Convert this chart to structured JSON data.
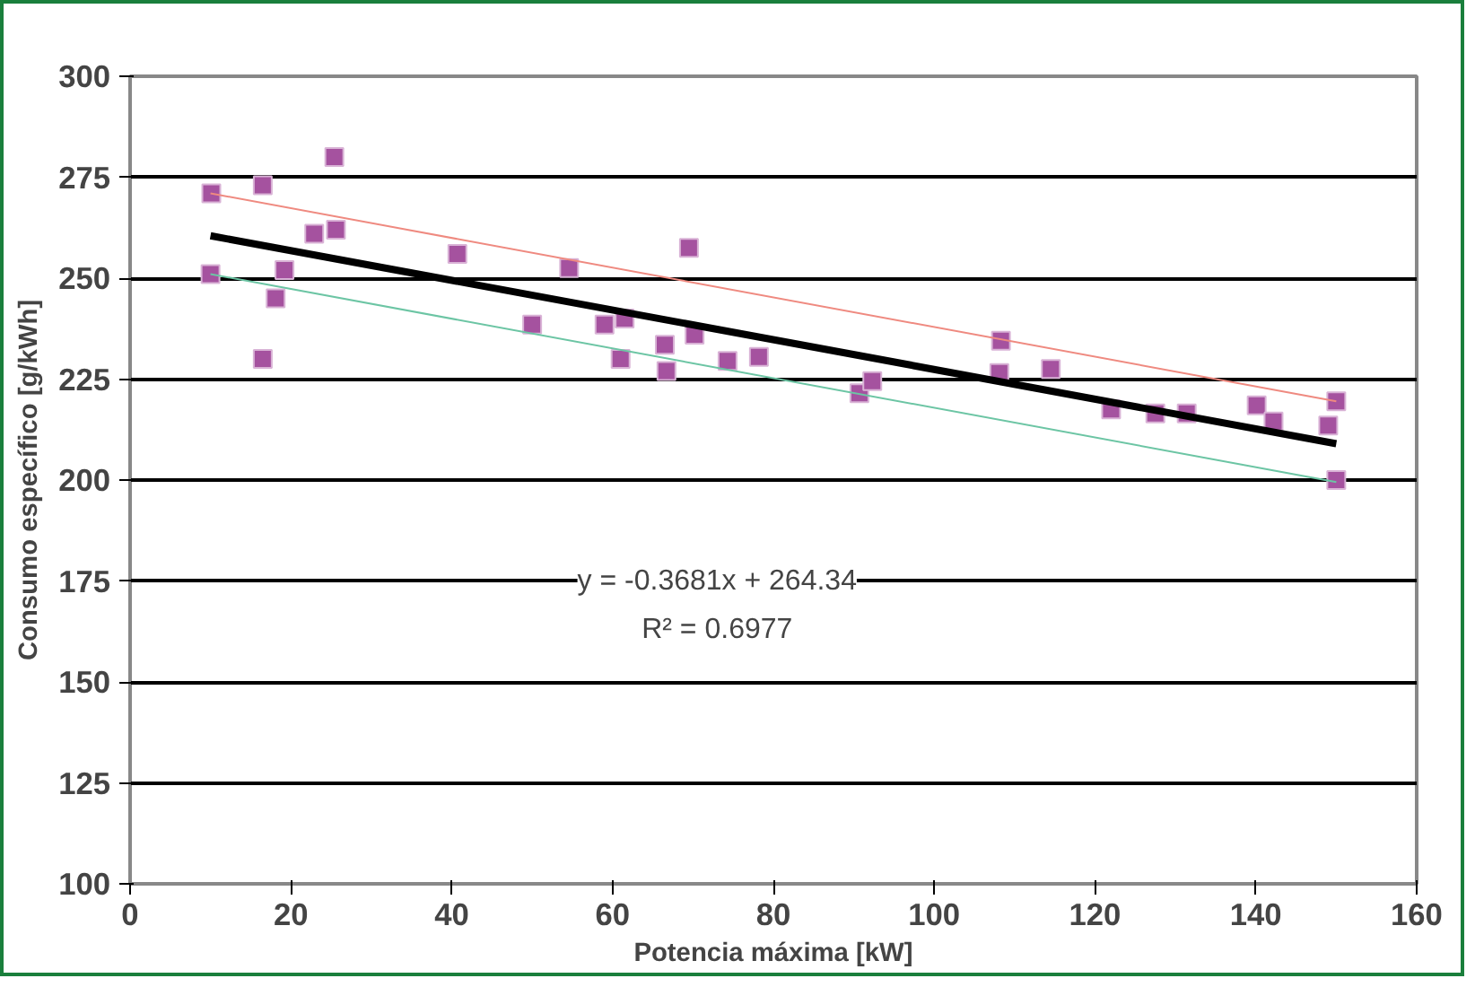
{
  "chart_data": {
    "type": "scatter",
    "xlabel": "Potencia máxima [kW]",
    "ylabel": "Consumo específico [g/kWh]",
    "xlim": [
      0,
      160
    ],
    "ylim": [
      100,
      300
    ],
    "xticks": [
      0,
      20,
      40,
      60,
      80,
      100,
      120,
      140,
      160
    ],
    "yticks": [
      100,
      125,
      150,
      175,
      200,
      225,
      250,
      275,
      300
    ],
    "grid": "y",
    "annotations": [
      "y = -0.3681x + 264.34",
      "R² = 0.6977"
    ],
    "series": [
      {
        "color": "#a5529f",
        "marker": "square",
        "x": [
          10.1,
          10,
          16.5,
          16.5,
          18.1,
          19.2,
          22.9,
          25.4,
          25.6,
          40.7,
          50,
          54.6,
          59,
          61,
          61.5,
          66.5,
          66.7,
          69.5,
          70.2,
          74.3,
          78.2,
          90.7,
          92.3,
          108.1,
          108.3,
          114.5,
          122,
          127.5,
          131.4,
          140.1,
          142.2,
          149,
          150,
          150
        ],
        "values": [
          271,
          251,
          273,
          230,
          245,
          252,
          261,
          280,
          262,
          256,
          238.5,
          252.5,
          238.5,
          230,
          240,
          233.5,
          227,
          257.5,
          236,
          229.5,
          230.5,
          221.5,
          224.5,
          226.5,
          234.5,
          227.5,
          217.5,
          216.5,
          216.5,
          218.5,
          214.5,
          213.5,
          219.5,
          200
        ]
      },
      {
        "type": "line",
        "color": "#000000",
        "x": [
          10,
          150
        ],
        "values": [
          260.5,
          209
        ]
      },
      {
        "type": "line",
        "color": "#ef8a80",
        "x": [
          10,
          150
        ],
        "values": [
          271,
          219.5
        ]
      },
      {
        "type": "line",
        "color": "#6cc5a4",
        "x": [
          10,
          150
        ],
        "values": [
          251,
          199.5
        ]
      }
    ]
  }
}
